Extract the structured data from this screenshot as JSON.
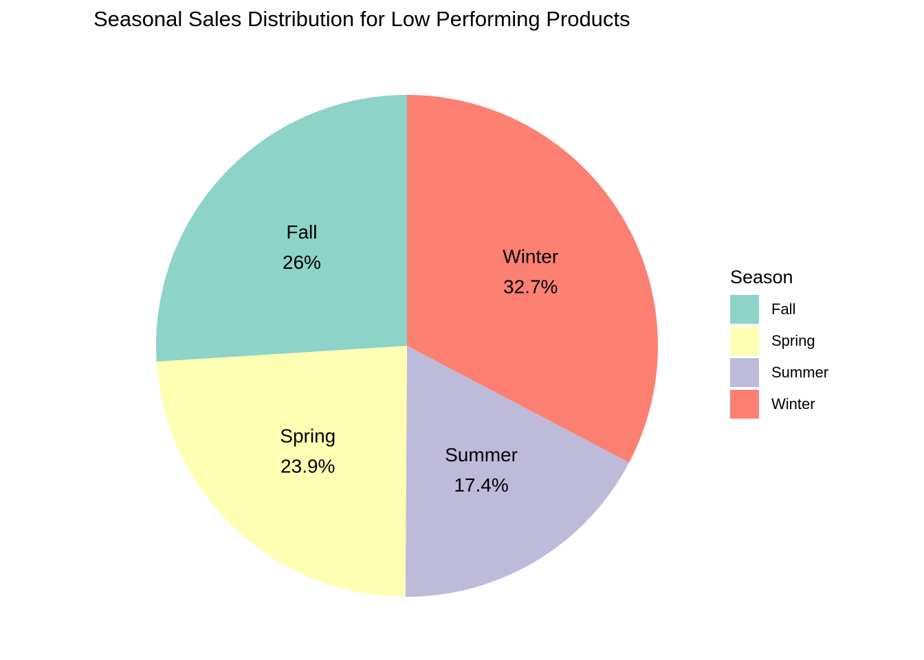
{
  "chart_data": {
    "type": "pie",
    "title": "Seasonal Sales Distribution for Low Performing Products",
    "legend_title": "Season",
    "legend_position": "right",
    "slices": [
      {
        "label": "Winter",
        "percent_label": "32.7%",
        "value": 32.7,
        "color": "#FB8072"
      },
      {
        "label": "Summer",
        "percent_label": "17.4%",
        "value": 17.4,
        "color": "#BEBADA"
      },
      {
        "label": "Spring",
        "percent_label": "23.9%",
        "value": 23.9,
        "color": "#FFFFB3"
      },
      {
        "label": "Fall",
        "percent_label": "26%",
        "value": 26.0,
        "color": "#8DD3C7"
      }
    ],
    "legend": [
      {
        "label": "Fall",
        "color": "#8DD3C7"
      },
      {
        "label": "Spring",
        "color": "#FFFFB3"
      },
      {
        "label": "Summer",
        "color": "#BEBADA"
      },
      {
        "label": "Winter",
        "color": "#FB8072"
      }
    ]
  }
}
